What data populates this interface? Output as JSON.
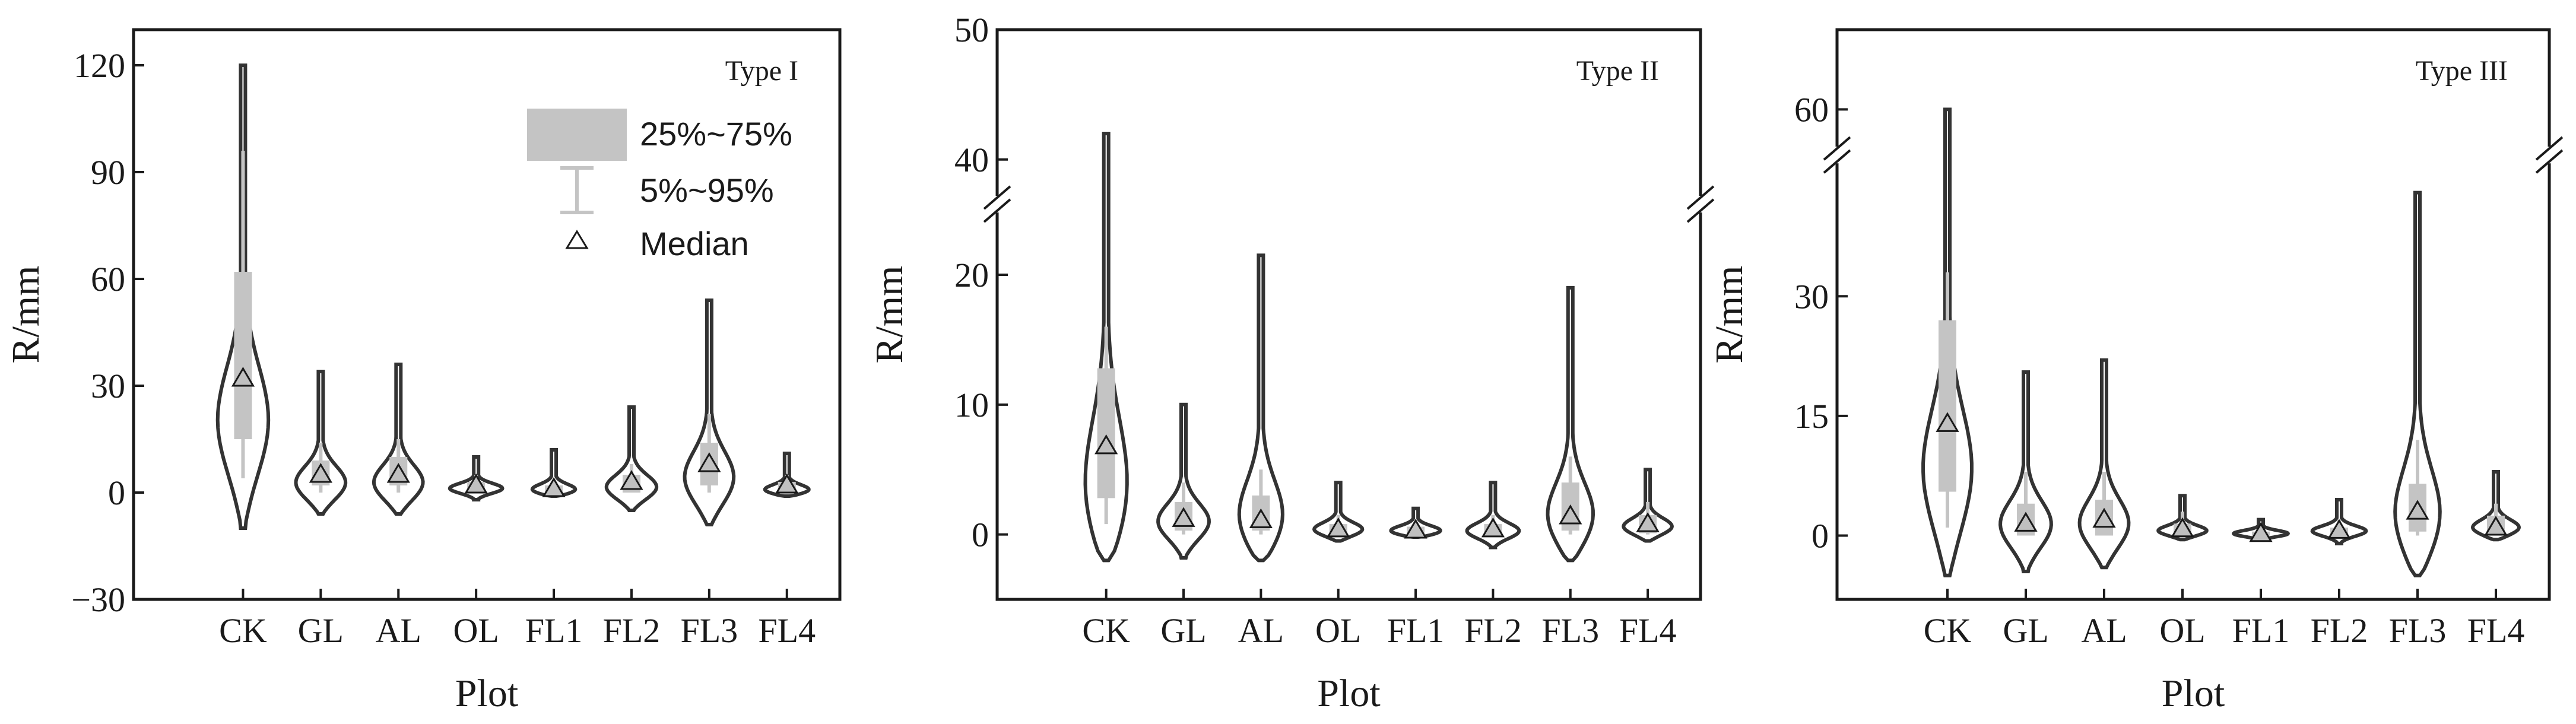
{
  "legend": {
    "iqr_label": "25%~75%",
    "whisker_label": "5%~95%",
    "median_label": "Median"
  },
  "colors": {
    "box": "#c4c4c4",
    "outline": "#333333",
    "median_fill": "#c0c0c0"
  },
  "chart_data": [
    {
      "type": "violin",
      "panel_label": "Type I",
      "xlabel": "Plot",
      "ylabel": "R/mm",
      "ylim": [
        -30,
        130
      ],
      "yticks": [
        -30,
        0,
        30,
        60,
        90,
        120
      ],
      "ytick_labels": [
        "−30",
        "0",
        "30",
        "60",
        "90",
        "120"
      ],
      "axis_break": null,
      "categories": [
        "CK",
        "GL",
        "AL",
        "OL",
        "FL1",
        "FL2",
        "FL3",
        "FL4"
      ],
      "min": [
        -10,
        -6,
        -6,
        -2,
        -1,
        -5,
        -9,
        -1
      ],
      "max": [
        120,
        34,
        36,
        10,
        12,
        24,
        54,
        11
      ],
      "q25": [
        15,
        2,
        2,
        0,
        0,
        0,
        2,
        0
      ],
      "q75": [
        62,
        9,
        10,
        3,
        2,
        5,
        14,
        3
      ],
      "p5": [
        4,
        0,
        0,
        0,
        0,
        0,
        0,
        0
      ],
      "p95": [
        96,
        14,
        15,
        5,
        3,
        8,
        22,
        5
      ],
      "median": [
        32,
        5,
        5,
        2,
        1,
        3,
        8,
        2
      ],
      "mode": [
        18,
        2,
        2,
        1,
        0.5,
        1,
        3,
        0.5
      ]
    },
    {
      "type": "violin",
      "panel_label": "Type II",
      "xlabel": "Plot",
      "ylabel": "R/mm",
      "ylim": [
        -5,
        50
      ],
      "yticks": [
        0,
        10,
        20,
        40,
        50
      ],
      "ytick_labels": [
        "0",
        "10",
        "20",
        "40",
        "50"
      ],
      "axis_break": [
        25,
        37
      ],
      "categories": [
        "CK",
        "GL",
        "AL",
        "OL",
        "FL1",
        "FL2",
        "FL3",
        "FL4"
      ],
      "min": [
        -2,
        -1.8,
        -2,
        -0.5,
        -0.2,
        -1,
        -2,
        -0.5
      ],
      "max": [
        42,
        10,
        21.5,
        4,
        2,
        4,
        19,
        5
      ],
      "q25": [
        2.8,
        0.3,
        0.3,
        0.1,
        0,
        0,
        0.3,
        0.1
      ],
      "q75": [
        12.8,
        2.5,
        3,
        0.8,
        0.6,
        0.8,
        4,
        1.5
      ],
      "p5": [
        0.8,
        0,
        0,
        0,
        0,
        0,
        0,
        0
      ],
      "p95": [
        16,
        4,
        5,
        1.5,
        1,
        1.5,
        6,
        2.5
      ],
      "median": [
        6.8,
        1.2,
        1.1,
        0.4,
        0.3,
        0.4,
        1.4,
        0.8
      ],
      "mode": [
        2.5,
        0.8,
        0.8,
        0.3,
        0.2,
        0.2,
        1,
        0.5
      ]
    },
    {
      "type": "violin",
      "panel_label": "Type III",
      "xlabel": "Plot",
      "ylabel": "R/mm",
      "ylim": [
        -8,
        70
      ],
      "yticks": [
        0,
        15,
        30,
        60
      ],
      "ytick_labels": [
        "0",
        "15",
        "30",
        "60"
      ],
      "axis_break": [
        47,
        55
      ],
      "categories": [
        "CK",
        "GL",
        "AL",
        "OL",
        "FL1",
        "FL2",
        "FL3",
        "FL4"
      ],
      "min": [
        -5,
        -4.5,
        -4,
        -0.5,
        -0.5,
        -1,
        -5,
        -0.5
      ],
      "max": [
        60,
        20.5,
        22,
        5,
        2,
        4.5,
        43,
        8
      ],
      "q25": [
        5.5,
        0,
        0,
        0,
        0,
        0,
        0.5,
        0
      ],
      "q75": [
        27,
        4,
        4.5,
        1.5,
        0.5,
        1,
        6.5,
        2.5
      ],
      "p5": [
        1,
        0,
        0,
        0,
        0,
        0,
        0,
        0
      ],
      "p95": [
        33,
        8,
        8,
        3,
        1,
        2,
        12,
        4
      ],
      "median": [
        14,
        1.5,
        2,
        0.8,
        0.2,
        0.6,
        3,
        1
      ],
      "mode": [
        7,
        1,
        1,
        0.5,
        0.2,
        0.5,
        1.5,
        0.8
      ]
    }
  ]
}
